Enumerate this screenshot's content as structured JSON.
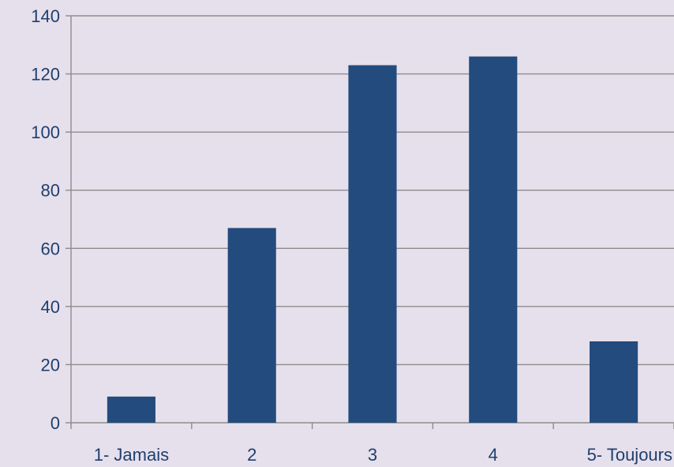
{
  "chart_data": {
    "type": "bar",
    "title": "",
    "xlabel": "",
    "ylabel": "",
    "categories": [
      "1- Jamais",
      "2",
      "3",
      "4",
      "5- Toujours"
    ],
    "values": [
      9,
      67,
      123,
      126,
      28
    ],
    "ylim": [
      0,
      140
    ],
    "yticks": [
      "0",
      "20",
      "40",
      "60",
      "80",
      "100",
      "120",
      "140"
    ],
    "grid": true,
    "legend": "none",
    "colors": {
      "background": "#e6e0ec",
      "bar": "#234b7d",
      "grid": "#8c8c8c",
      "text": "#1f3f6e"
    }
  }
}
